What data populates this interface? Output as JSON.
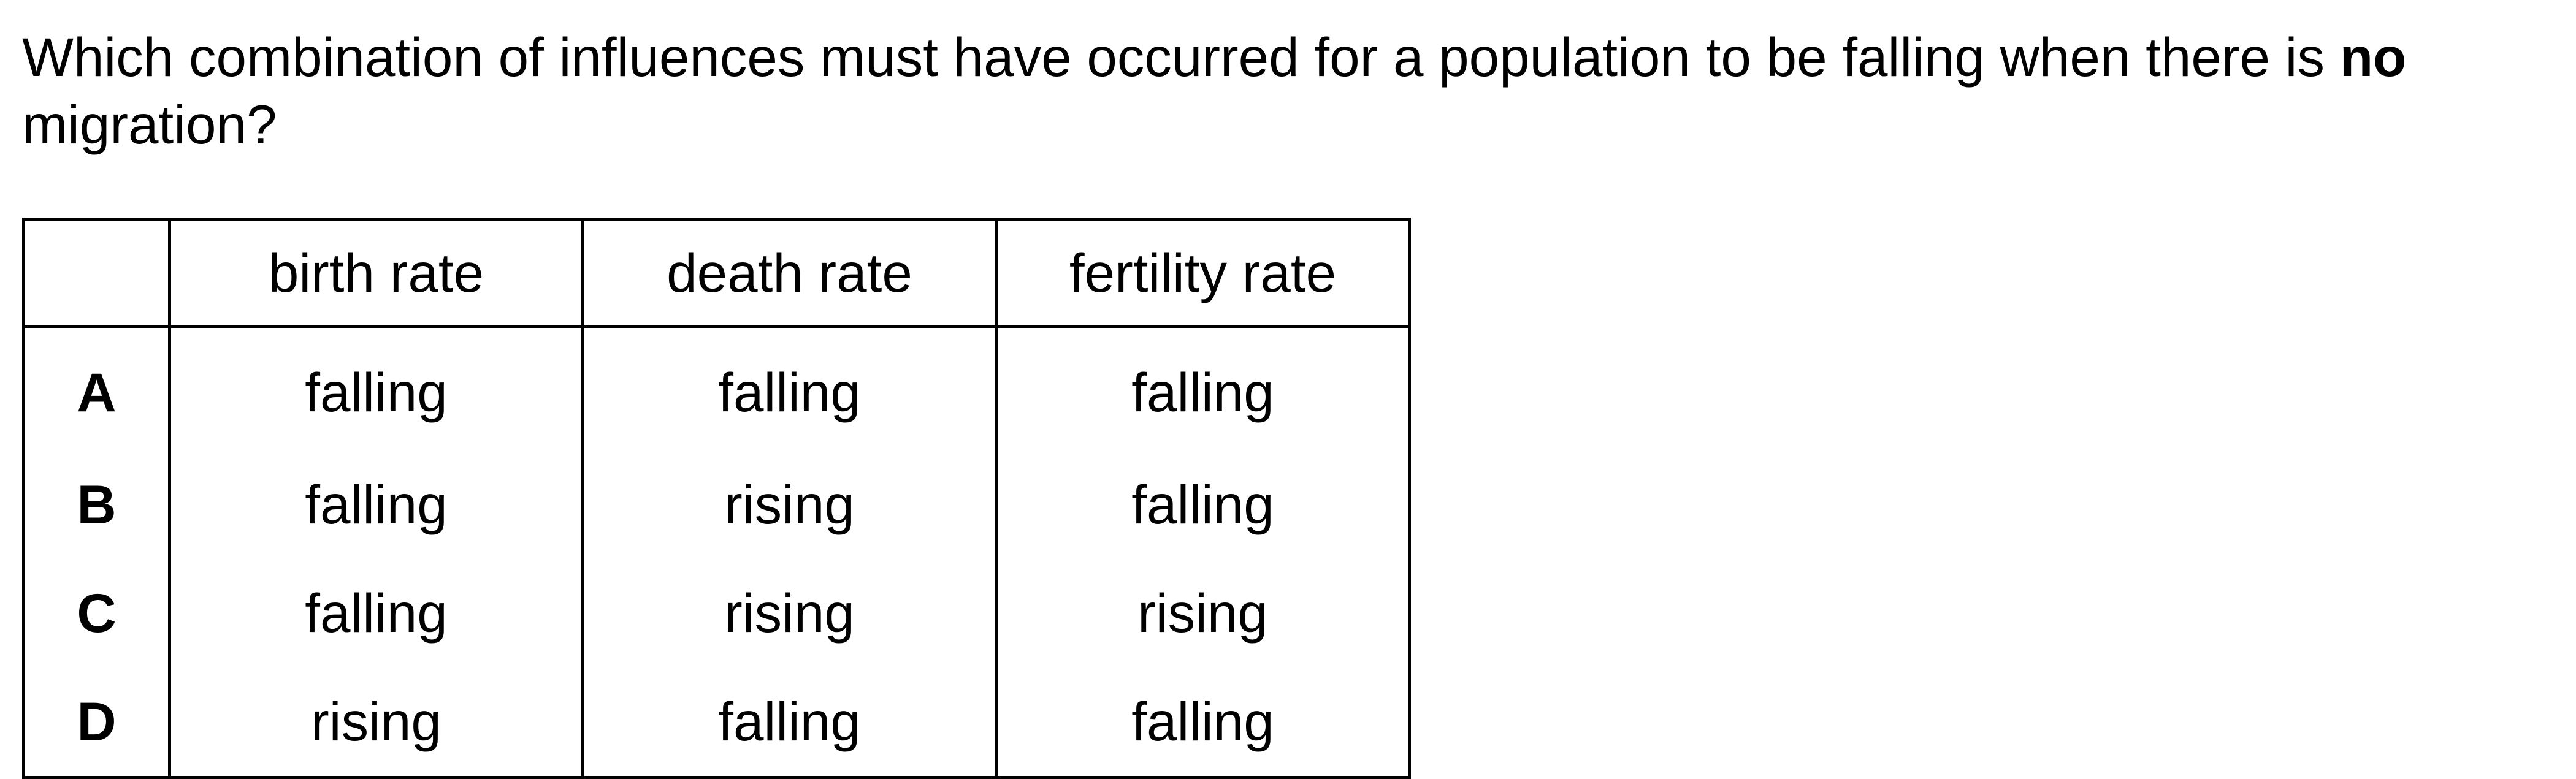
{
  "question": {
    "text_before": "Which combination of influences must have occurred for a population to be falling when there is ",
    "emphasis": "no",
    "text_after": " migration?"
  },
  "table": {
    "corner": "",
    "headers": [
      "birth rate",
      "death rate",
      "fertility rate"
    ],
    "rows": [
      {
        "key": "A",
        "cells": [
          "falling",
          "falling",
          "falling"
        ]
      },
      {
        "key": "B",
        "cells": [
          "falling",
          "rising",
          "falling"
        ]
      },
      {
        "key": "C",
        "cells": [
          "falling",
          "rising",
          "rising"
        ]
      },
      {
        "key": "D",
        "cells": [
          "rising",
          "falling",
          "falling"
        ]
      }
    ]
  }
}
